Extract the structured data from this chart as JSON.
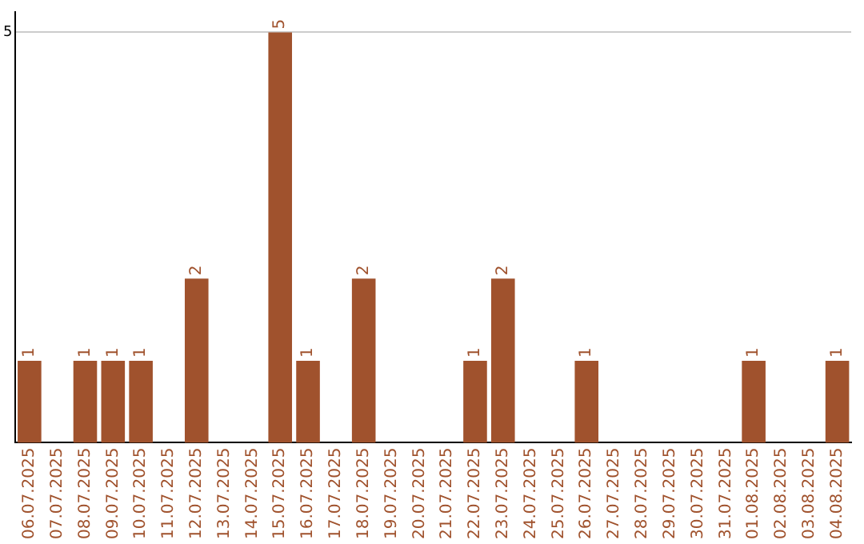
{
  "chart_data": {
    "type": "bar",
    "categories": [
      "06.07.2025",
      "07.07.2025",
      "08.07.2025",
      "09.07.2025",
      "10.07.2025",
      "11.07.2025",
      "12.07.2025",
      "13.07.2025",
      "14.07.2025",
      "15.07.2025",
      "16.07.2025",
      "17.07.2025",
      "18.07.2025",
      "19.07.2025",
      "20.07.2025",
      "21.07.2025",
      "22.07.2025",
      "23.07.2025",
      "24.07.2025",
      "25.07.2025",
      "26.07.2025",
      "27.07.2025",
      "28.07.2025",
      "29.07.2025",
      "30.07.2025",
      "31.07.2025",
      "01.08.2025",
      "02.08.2025",
      "03.08.2025",
      "04.08.2025"
    ],
    "values": [
      1,
      0,
      1,
      1,
      1,
      0,
      2,
      0,
      0,
      5,
      1,
      0,
      2,
      0,
      0,
      0,
      1,
      2,
      0,
      0,
      1,
      0,
      0,
      0,
      0,
      0,
      1,
      0,
      0,
      1
    ],
    "value_labels": [
      "1",
      null,
      "1",
      "1",
      "1",
      null,
      "2",
      null,
      null,
      "5",
      "1",
      null,
      "2",
      null,
      null,
      null,
      "1",
      "2",
      null,
      null,
      "1",
      null,
      null,
      null,
      null,
      null,
      "1",
      null,
      null,
      "1"
    ],
    "color": "#a0522d",
    "ylim": [
      0,
      5.25
    ],
    "yticks": [
      5
    ],
    "grid": "y"
  }
}
